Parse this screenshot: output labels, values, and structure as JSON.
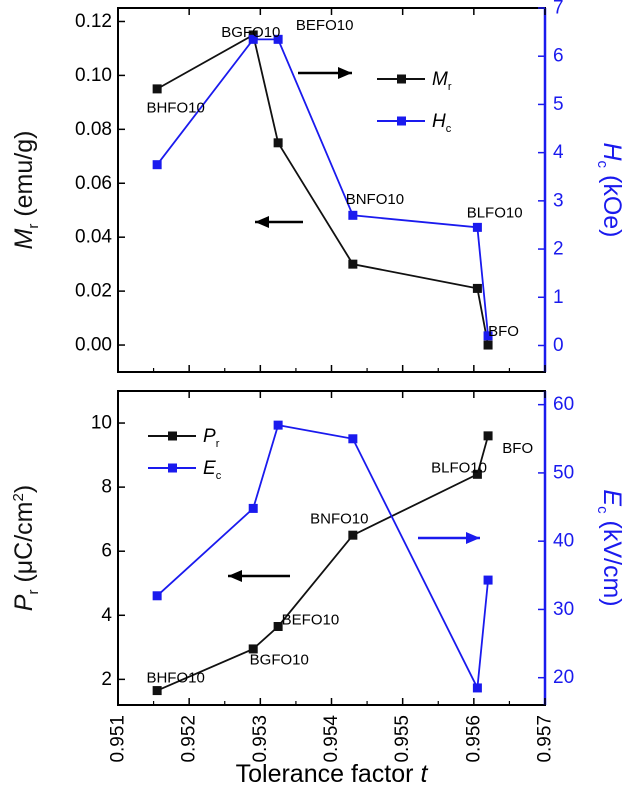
{
  "colors": {
    "left": "#111111",
    "right": "#1a1aee"
  },
  "chart_data": [
    {
      "type": "line",
      "xlim": [
        0.951,
        0.957
      ],
      "y_left": {
        "label": "M",
        "sub": "r",
        "unit": " (emu/g)",
        "ylim": [
          -0.01,
          0.125
        ],
        "ticks": [
          0.0,
          0.02,
          0.04,
          0.06,
          0.08,
          0.1,
          0.12
        ],
        "tick_labels": [
          "0.00",
          "0.02",
          "0.04",
          "0.06",
          "0.08",
          "0.10",
          "0.12"
        ]
      },
      "y_right": {
        "label": "H",
        "sub": "c",
        "unit": " (kOe)",
        "ylim": [
          -0.55,
          7
        ],
        "ticks": [
          0,
          1,
          2,
          3,
          4,
          5,
          6,
          7
        ],
        "tick_labels": [
          "0",
          "1",
          "2",
          "3",
          "4",
          "5",
          "6",
          "7"
        ]
      },
      "series": [
        {
          "name": "M",
          "sub": "r",
          "axis": "left",
          "x": [
            0.95155,
            0.9529,
            0.95325,
            0.9543,
            0.95605,
            0.9562
          ],
          "y": [
            0.095,
            0.115,
            0.075,
            0.03,
            0.021,
            0.0
          ]
        },
        {
          "name": "H",
          "sub": "c",
          "axis": "right",
          "x": [
            0.95155,
            0.9529,
            0.95325,
            0.9543,
            0.95605,
            0.9562
          ],
          "y": [
            3.75,
            6.35,
            6.35,
            2.7,
            2.45,
            0.2
          ]
        }
      ],
      "point_labels": [
        {
          "text": "BHFO10",
          "x": 0.9514,
          "y": 0.088
        },
        {
          "text": "BGFO10",
          "x": 0.95245,
          "y": 0.116
        },
        {
          "text": "BEFO10",
          "x": 0.9535,
          "y": 0.1185
        },
        {
          "text": "BNFO10",
          "x": 0.9542,
          "y": 0.054
        },
        {
          "text": "BLFO10",
          "x": 0.9559,
          "y": 0.049
        },
        {
          "text": "BFO",
          "x": 0.9562,
          "y": 0.005
        }
      ]
    },
    {
      "type": "line",
      "xlim": [
        0.951,
        0.957
      ],
      "xlabel": "Tolerance factor ",
      "xlabel_italic": "t",
      "x_ticks": [
        0.951,
        0.952,
        0.953,
        0.954,
        0.955,
        0.956,
        0.957
      ],
      "x_tick_labels": [
        "0.951",
        "0.952",
        "0.953",
        "0.954",
        "0.955",
        "0.956",
        "0.957"
      ],
      "y_left": {
        "label": "P",
        "sub": "r",
        "unit_prefix": " (μC/cm",
        "unit_sup": "2",
        "unit_suffix": ")",
        "ylim": [
          1.2,
          11
        ],
        "ticks": [
          2,
          4,
          6,
          8,
          10
        ],
        "tick_labels": [
          "2",
          "4",
          "6",
          "8",
          "10"
        ]
      },
      "y_right": {
        "label": "E",
        "sub": "c",
        "unit": " (kV/cm)",
        "ylim": [
          16,
          62
        ],
        "ticks": [
          20,
          30,
          40,
          50,
          60
        ],
        "tick_labels": [
          "20",
          "30",
          "40",
          "50",
          "60"
        ]
      },
      "series": [
        {
          "name": "P",
          "sub": "r",
          "axis": "left",
          "x": [
            0.95155,
            0.9529,
            0.95325,
            0.9543,
            0.95605,
            0.9562
          ],
          "y": [
            1.65,
            2.95,
            3.65,
            6.5,
            8.4,
            9.6
          ]
        },
        {
          "name": "E",
          "sub": "c",
          "axis": "right",
          "x": [
            0.95155,
            0.9529,
            0.95325,
            0.9543,
            0.95605,
            0.9562
          ],
          "y": [
            32,
            44.8,
            57,
            55,
            18.5,
            34.3
          ]
        }
      ],
      "point_labels": [
        {
          "text": "BHFO10",
          "x": 0.9514,
          "y": 2.05
        },
        {
          "text": "BGFO10",
          "x": 0.95285,
          "y": 2.6
        },
        {
          "text": "BEFO10",
          "x": 0.9533,
          "y": 3.85
        },
        {
          "text": "BNFO10",
          "x": 0.9537,
          "y": 7.0
        },
        {
          "text": "BLFO10",
          "x": 0.9554,
          "y": 8.6
        },
        {
          "text": "BFO",
          "x": 0.9564,
          "y": 9.2
        }
      ]
    }
  ]
}
